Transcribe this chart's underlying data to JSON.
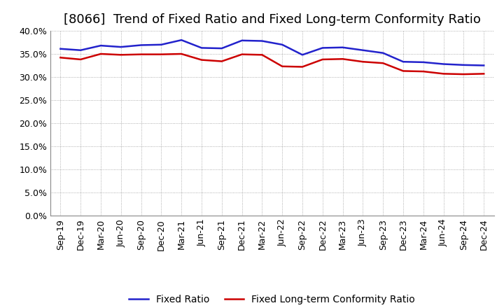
{
  "title": "[8066]  Trend of Fixed Ratio and Fixed Long-term Conformity Ratio",
  "x_labels": [
    "Sep-19",
    "Dec-19",
    "Mar-20",
    "Jun-20",
    "Sep-20",
    "Dec-20",
    "Mar-21",
    "Jun-21",
    "Sep-21",
    "Dec-21",
    "Mar-22",
    "Jun-22",
    "Sep-22",
    "Dec-22",
    "Mar-23",
    "Jun-23",
    "Sep-23",
    "Dec-23",
    "Mar-24",
    "Jun-24",
    "Sep-24",
    "Dec-24"
  ],
  "fixed_ratio": [
    36.1,
    35.8,
    36.8,
    36.5,
    36.9,
    37.0,
    38.0,
    36.3,
    36.2,
    37.9,
    37.8,
    37.0,
    34.8,
    36.3,
    36.4,
    35.8,
    35.2,
    33.3,
    33.2,
    32.8,
    32.6,
    32.5
  ],
  "fixed_lt_ratio": [
    34.2,
    33.8,
    35.0,
    34.8,
    34.9,
    34.9,
    35.0,
    33.7,
    33.4,
    34.9,
    34.8,
    32.3,
    32.2,
    33.8,
    33.9,
    33.3,
    33.0,
    31.3,
    31.2,
    30.7,
    30.6,
    30.7
  ],
  "fixed_ratio_color": "#2222cc",
  "fixed_lt_ratio_color": "#cc0000",
  "ylim": [
    0,
    40
  ],
  "yticks": [
    0,
    5,
    10,
    15,
    20,
    25,
    30,
    35,
    40
  ],
  "background_color": "#ffffff",
  "grid_color": "#999999",
  "title_fontsize": 13,
  "axis_fontsize": 9,
  "legend_fontsize": 10
}
